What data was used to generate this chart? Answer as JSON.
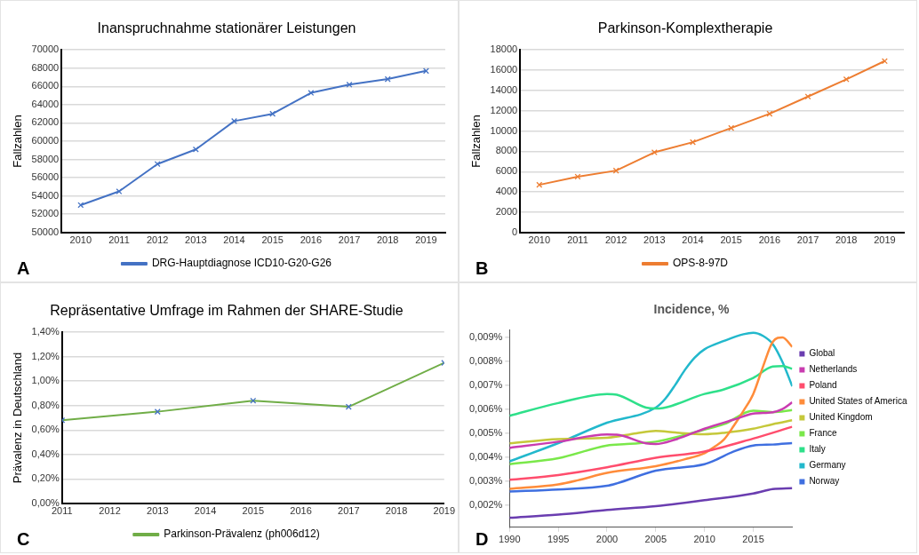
{
  "chart_data": [
    {
      "type": "line",
      "title": "Inanspruchnahme stationärer Leistungen",
      "ylabel": "Fallzahlen",
      "categories": [
        "2010",
        "2011",
        "2012",
        "2013",
        "2014",
        "2015",
        "2016",
        "2017",
        "2018",
        "2019"
      ],
      "series": [
        {
          "name": "DRG-Hauptdiagnose ICD10-G20-G26",
          "color": "#4472c4",
          "values": [
            53000,
            54500,
            57500,
            59100,
            62200,
            63000,
            65300,
            66200,
            66800,
            67700
          ]
        }
      ],
      "ylim": [
        50000,
        70000
      ],
      "yticks": [
        50000,
        52000,
        54000,
        56000,
        58000,
        60000,
        62000,
        64000,
        66000,
        68000,
        70000
      ],
      "grid": "y",
      "legend": "bottom",
      "marker": "cross",
      "annotations": [
        "A"
      ]
    },
    {
      "type": "line",
      "title": "Parkinson-Komplextherapie",
      "ylabel": "Fallzahlen",
      "categories": [
        "2010",
        "2011",
        "2012",
        "2013",
        "2014",
        "2015",
        "2016",
        "2017",
        "2018",
        "2019"
      ],
      "series": [
        {
          "name": "OPS-8-97D",
          "color": "#ed7d31",
          "values": [
            4700,
            5500,
            6100,
            7900,
            8900,
            10300,
            11700,
            13400,
            15100,
            16900
          ]
        }
      ],
      "ylim": [
        0,
        18000
      ],
      "yticks": [
        0,
        2000,
        4000,
        6000,
        8000,
        10000,
        12000,
        14000,
        16000,
        18000
      ],
      "grid": "y",
      "legend": "bottom",
      "marker": "cross",
      "annotations": [
        "B"
      ]
    },
    {
      "type": "line",
      "title": "Repräsentative Umfrage im Rahmen der SHARE-Studie",
      "ylabel": "Prävalenz in Deutschland",
      "x": [
        2011,
        2013,
        2015,
        2017,
        2019
      ],
      "series": [
        {
          "name": "Parkinson-Prävalenz (ph006d12)",
          "color": "#70ad47",
          "colors": [
            "#4472c4",
            "#4472c4",
            "#4472c4",
            "#4472c4",
            "#4472c4"
          ],
          "values": [
            0.68,
            0.75,
            0.84,
            0.79,
            1.15
          ]
        }
      ],
      "xlim": [
        2011,
        2019
      ],
      "xticks": [
        2011,
        2012,
        2013,
        2014,
        2015,
        2016,
        2017,
        2018,
        2019
      ],
      "ylim": [
        0,
        1.4
      ],
      "yticks": [
        {
          "value": 0,
          "label": "0,00%"
        },
        {
          "value": 0.2,
          "label": "0,20%"
        },
        {
          "value": 0.4,
          "label": "0,40%"
        },
        {
          "value": 0.6,
          "label": "0,60%"
        },
        {
          "value": 0.8,
          "label": "0,80%"
        },
        {
          "value": 1,
          "label": "1,00%"
        },
        {
          "value": 1.2,
          "label": "1,20%"
        },
        {
          "value": 1.4,
          "label": "1,40%"
        }
      ],
      "grid": "y",
      "legend": "bottom",
      "marker": "cross",
      "annotations": [
        "C"
      ]
    },
    {
      "type": "line",
      "title": "Incidence, %",
      "xlim": [
        1990,
        2019
      ],
      "xticks": [
        1990,
        1995,
        2000,
        2005,
        2010,
        2015
      ],
      "ylim": [
        0.00108,
        0.0093
      ],
      "yticks": [
        {
          "value": 0.002,
          "label": "0,002%"
        },
        {
          "value": 0.003,
          "label": "0,003%"
        },
        {
          "value": 0.004,
          "label": "0,004%"
        },
        {
          "value": 0.005,
          "label": "0,005%"
        },
        {
          "value": 0.006,
          "label": "0,006%"
        },
        {
          "value": 0.007,
          "label": "0,007%"
        },
        {
          "value": 0.008,
          "label": "0,008%"
        },
        {
          "value": 0.009,
          "label": "0,009%"
        }
      ],
      "grid": false,
      "legend": "right",
      "marker": "none",
      "annotations": [
        "D"
      ],
      "series": [
        {
          "name": "Global",
          "color": "#6a3db0",
          "x": [
            1990,
            1995,
            2000,
            2005,
            2010,
            2015,
            2017,
            2019
          ],
          "values": [
            0.00148,
            0.00161,
            0.0018,
            0.00196,
            0.00221,
            0.00249,
            0.00267,
            0.00271
          ]
        },
        {
          "name": "Netherlands",
          "color": "#c93cb0",
          "x": [
            1990,
            1995,
            2000,
            2001,
            2004,
            2005,
            2007,
            2010,
            2013,
            2015,
            2017,
            2018,
            2019
          ],
          "values": [
            0.00439,
            0.00465,
            0.00495,
            0.00494,
            0.00458,
            0.00455,
            0.00474,
            0.00519,
            0.00557,
            0.00582,
            0.00588,
            0.00601,
            0.00629
          ]
        },
        {
          "name": "Poland",
          "color": "#ff4d6d",
          "x": [
            1990,
            1995,
            2000,
            2005,
            2010,
            2015,
            2019
          ],
          "values": [
            0.00306,
            0.00326,
            0.00358,
            0.00398,
            0.00424,
            0.00478,
            0.00527
          ]
        },
        {
          "name": "United States of America",
          "color": "#ff8c3a",
          "x": [
            1990,
            1995,
            1997,
            2000,
            2005,
            2008,
            2010,
            2011,
            2012,
            2013,
            2014,
            2015,
            2016,
            2017,
            2018,
            2019
          ],
          "values": [
            0.00268,
            0.00287,
            0.00304,
            0.00335,
            0.00363,
            0.00392,
            0.00417,
            0.00443,
            0.00474,
            0.00531,
            0.00594,
            0.00664,
            0.00778,
            0.00881,
            0.009,
            0.0086
          ]
        },
        {
          "name": "United Kingdom",
          "color": "#c5c83a",
          "x": [
            1990,
            1995,
            2000,
            2003,
            2005,
            2007,
            2010,
            2012,
            2015,
            2017,
            2019
          ],
          "values": [
            0.00458,
            0.00476,
            0.00481,
            0.005,
            0.0051,
            0.00503,
            0.00496,
            0.00502,
            0.00519,
            0.00538,
            0.00554
          ]
        },
        {
          "name": "France",
          "color": "#7ae84a",
          "x": [
            1990,
            1995,
            2000,
            2002,
            2005,
            2008,
            2010,
            2012,
            2015,
            2017,
            2019
          ],
          "values": [
            0.00371,
            0.00396,
            0.00449,
            0.00455,
            0.00465,
            0.00493,
            0.00515,
            0.00538,
            0.00594,
            0.00588,
            0.00597
          ]
        },
        {
          "name": "Italy",
          "color": "#2ee08a",
          "x": [
            1990,
            1995,
            2000,
            2001,
            2004,
            2005,
            2010,
            2012,
            2015,
            2017,
            2018,
            2019
          ],
          "values": [
            0.00573,
            0.00626,
            0.00664,
            0.00661,
            0.00607,
            0.00603,
            0.00664,
            0.00683,
            0.00731,
            0.00778,
            0.0078,
            0.00769
          ]
        },
        {
          "name": "Germany",
          "color": "#22b8cc",
          "x": [
            1990,
            1995,
            2000,
            2005,
            2006,
            2007,
            2008,
            2009,
            2010,
            2012,
            2014,
            2015,
            2016,
            2017,
            2018,
            2019
          ],
          "values": [
            0.00383,
            0.00459,
            0.00544,
            0.00607,
            0.00645,
            0.00702,
            0.00765,
            0.00816,
            0.0085,
            0.00885,
            0.00913,
            0.00919,
            0.00906,
            0.00872,
            0.00797,
            0.00696
          ]
        },
        {
          "name": "Norway",
          "color": "#3f6fe0",
          "x": [
            1990,
            1995,
            2000,
            2001,
            2005,
            2010,
            2011,
            2013,
            2015,
            2017,
            2019
          ],
          "values": [
            0.00257,
            0.00266,
            0.00281,
            0.00291,
            0.00344,
            0.00371,
            0.00386,
            0.00424,
            0.00449,
            0.00453,
            0.00459
          ]
        }
      ]
    }
  ]
}
